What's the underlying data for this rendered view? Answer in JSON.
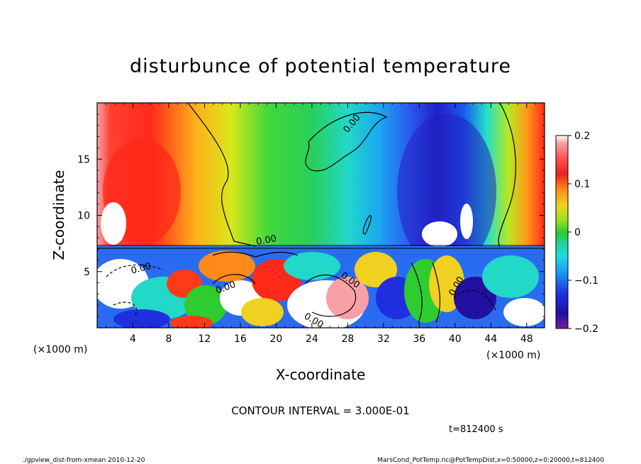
{
  "chart_data": {
    "type": "heatmap",
    "title": "disturbunce of potential temperature",
    "xlabel": "X-coordinate",
    "ylabel": "Z-coordinate",
    "x_unit_left": "(×1000 m)",
    "x_unit_right": "(×1000 m)",
    "xlim": [
      0,
      50
    ],
    "ylim": [
      0,
      20
    ],
    "xticks": [
      4,
      8,
      12,
      16,
      20,
      24,
      28,
      32,
      36,
      40,
      44,
      48
    ],
    "yticks": [
      5,
      10,
      15
    ],
    "colorbar": {
      "range": [
        -0.2,
        0.2
      ],
      "tick_labels": [
        "0.2",
        "0.1",
        "0",
        "−0.1",
        "−0.2"
      ],
      "tick_values": [
        0.2,
        0.1,
        0,
        -0.1,
        -0.2
      ]
    },
    "contour_interval_text": "CONTOUR INTERVAL = 3.000E-01",
    "contour_labels": [
      "0.00",
      "0.00",
      "0.00",
      "0.00",
      "0.00",
      "0.00",
      "0.00"
    ],
    "time_label": "t=812400 s",
    "colors": {
      "max": "#f7a1a7",
      "positive": "#e8231d",
      "zero": "#2ecc2e",
      "negative": "#1f2fe0",
      "min": "#7a18a6"
    }
  },
  "footer": {
    "left": "./gpview_dist-from-xmean   2010-12-20",
    "right": "MarsCond_PotTemp.nc@PotTempDist,x=0:50000,z=0:20000,t=812400"
  }
}
